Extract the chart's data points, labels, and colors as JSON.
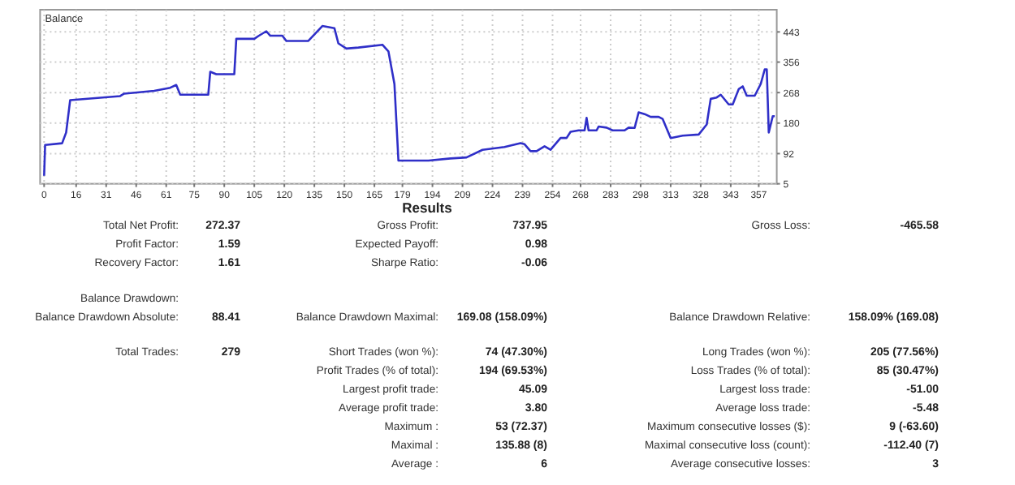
{
  "chart_data": [
    {
      "type": "line",
      "title": "Balance",
      "xlim": [
        -2,
        366
      ],
      "ylim": [
        5,
        507
      ],
      "xticks": [
        0,
        16,
        31,
        46,
        61,
        75,
        90,
        105,
        120,
        135,
        150,
        165,
        179,
        194,
        209,
        224,
        239,
        254,
        268,
        283,
        298,
        313,
        328,
        343,
        357
      ],
      "yticks": [
        5,
        92,
        180,
        268,
        356,
        443
      ],
      "grid": true,
      "marker": "none",
      "line_style": "solid",
      "series": [
        {
          "color": "#2f2fc8",
          "x": [
            0,
            0.5,
            9,
            11,
            13,
            38,
            40,
            55,
            63,
            66,
            68,
            82,
            83,
            86,
            95,
            96,
            105,
            107,
            111,
            113,
            119,
            121,
            132,
            139,
            145,
            147,
            151,
            157,
            169,
            172,
            175,
            177,
            192,
            203,
            211,
            219,
            230,
            238,
            240,
            243,
            246,
            250,
            253,
            258,
            261,
            263,
            267,
            270,
            271,
            272,
            276,
            277,
            281,
            284,
            290,
            292,
            295,
            297,
            300,
            303,
            307,
            309,
            313,
            319,
            327,
            331,
            333,
            336,
            338,
            342,
            344,
            347,
            349,
            351,
            355,
            358,
            360,
            361,
            361.5,
            362,
            364,
            365
          ],
          "values": [
            28,
            117,
            122,
            153,
            246,
            258,
            265,
            273,
            282,
            290,
            262,
            262,
            328,
            321,
            321,
            423,
            423,
            431,
            445,
            432,
            432,
            417,
            417,
            460,
            454,
            410,
            395,
            398,
            406,
            387,
            293,
            72,
            72,
            78,
            81,
            103,
            111,
            122,
            119,
            99,
            99,
            113,
            103,
            137,
            137,
            155,
            159,
            159,
            195,
            159,
            159,
            170,
            167,
            159,
            159,
            167,
            166,
            211,
            206,
            198,
            198,
            192,
            137,
            144,
            147,
            176,
            250,
            254,
            262,
            234,
            234,
            278,
            286,
            259,
            259,
            293,
            335,
            335,
            246,
            153,
            200,
            200
          ]
        }
      ]
    },
    {
      "type": "other",
      "title": "Results",
      "annotations": [
        "Total Net Profit:",
        "272.37",
        "Gross Profit:",
        "737.95",
        "Gross Loss:",
        "-465.58",
        "Profit Factor:",
        "1.59",
        "Expected Payoff:",
        "0.98",
        "Recovery Factor:",
        "1.61",
        "Sharpe Ratio:",
        "-0.06",
        "Balance Drawdown:",
        "Balance Drawdown Absolute:",
        "88.41",
        "Balance Drawdown Maximal:",
        "169.08 (158.09%)",
        "Balance Drawdown Relative:",
        "158.09% (169.08)",
        "Total Trades:",
        "279",
        "Short Trades (won %):",
        "74 (47.30%)",
        "Long Trades (won %):",
        "205 (77.56%)",
        "Profit Trades (% of total):",
        "194 (69.53%)",
        "Loss Trades (% of total):",
        "85 (30.47%)",
        "Largest profit trade:",
        "45.09",
        "Largest loss trade:",
        "-51.00",
        "Average profit trade:",
        "3.80",
        "Average loss trade:",
        "-5.48",
        "Maximum :",
        "53 (72.37)",
        "Maximum consecutive losses ($):",
        "9 (-63.60)",
        "Maximal :",
        "135.88 (8)",
        "Maximal consecutive loss (count):",
        "-112.40 (7)",
        "Average :",
        "6",
        "Average consecutive losses:",
        "3"
      ]
    }
  ]
}
